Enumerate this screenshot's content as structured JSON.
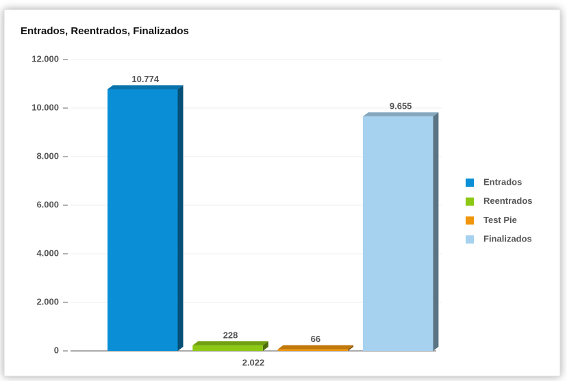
{
  "chart_data": {
    "type": "bar",
    "title": "Entrados, Reentrados, Finalizados",
    "categories": [
      "2.022"
    ],
    "series": [
      {
        "name": "Entrados",
        "color": "#0a8fd6",
        "values": [
          10774
        ],
        "value_labels": [
          "10.774"
        ]
      },
      {
        "name": "Reentrados",
        "color": "#8cc814",
        "values": [
          228
        ],
        "value_labels": [
          "228"
        ]
      },
      {
        "name": "Test Pie",
        "color": "#f0960c",
        "values": [
          66
        ],
        "value_labels": [
          "66"
        ]
      },
      {
        "name": "Finalizados",
        "color": "#a6d2f0",
        "values": [
          9655
        ],
        "value_labels": [
          "9.655"
        ]
      }
    ],
    "ylim": [
      0,
      12000
    ],
    "yticks": [
      0,
      {
        "value": 2000,
        "label": "2.000"
      },
      {
        "value": 4000,
        "label": "4.000"
      },
      {
        "value": 6000,
        "label": "6.000"
      },
      {
        "value": 8000,
        "label": "8.000"
      },
      {
        "value": 10000,
        "label": "10.000"
      },
      {
        "value": 12000,
        "label": "12.000"
      }
    ],
    "grid": true,
    "legend": "right"
  }
}
